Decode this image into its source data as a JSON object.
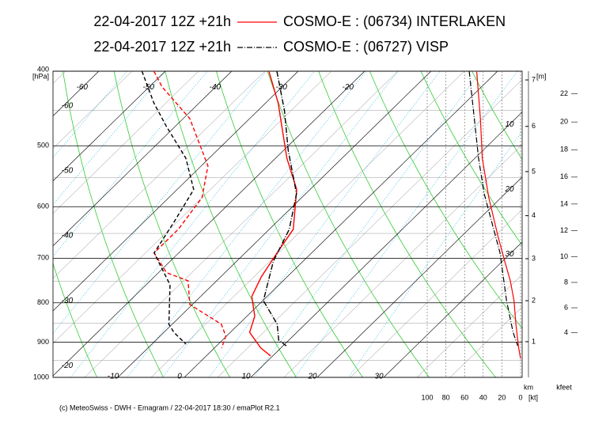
{
  "chart_data": {
    "type": "emagram",
    "series": [
      {
        "run": "22-04-2017 12Z +21h",
        "name": "COSMO-E : (06734) INTERLAKEN",
        "color": "#ff0000",
        "temperature": {
          "pressure": [
            400,
            440,
            519,
            570,
            642,
            689,
            740,
            785,
            833,
            874,
            916,
            938
          ],
          "values": [
            -34.4,
            -28.1,
            -18.3,
            -12,
            -6.4,
            -5.2,
            -3.9,
            -2.3,
            1.2,
            2.9,
            7.0,
            9.7
          ]
        },
        "dewpoint": {
          "pressure": [
            400,
            419,
            461,
            531,
            584,
            642,
            689,
            731,
            749,
            804,
            853,
            884,
            916
          ],
          "values": [
            -51.7,
            -48.1,
            -39,
            -29,
            -25,
            -23.7,
            -23.7,
            -18.8,
            -14.3,
            -10.4,
            -2.6,
            -0.1,
            1.1
          ]
        },
        "wind_speed": {
          "pressure": [
            400,
            461,
            519,
            584,
            657,
            706,
            749,
            795,
            853,
            916,
            945
          ],
          "values": [
            47,
            43,
            41,
            34,
            24,
            17,
            11,
            7,
            5,
            2,
            0
          ]
        }
      },
      {
        "run": "22-04-2017 12Z +21h",
        "name": "COSMO-E : (06727) VISP",
        "color": "#000000",
        "temperature": {
          "pressure": [
            400,
            450,
            507,
            577,
            642,
            706,
            795,
            853,
            895,
            910
          ],
          "values": [
            -33.2,
            -26,
            -19.3,
            -11.4,
            -7,
            -4.5,
            0.1,
            5.8,
            8.5,
            10.5
          ]
        },
        "dewpoint": {
          "pressure": [
            400,
            440,
            472,
            519,
            570,
            627,
            689,
            758,
            853,
            874,
            905
          ],
          "values": [
            -53.5,
            -46.8,
            -41.3,
            -33.5,
            -27.5,
            -25.5,
            -23.7,
            -16.4,
            -10.5,
            -8.5,
            -4.9
          ]
        },
        "wind_speed": {
          "pressure": [
            400,
            519,
            577,
            689,
            795,
            874,
            910
          ],
          "values": [
            55,
            45,
            39,
            22,
            15,
            8,
            3
          ]
        }
      }
    ],
    "ylim": [
      1000,
      400
    ],
    "yticks": [
      400,
      500,
      600,
      700,
      800,
      900,
      1000
    ],
    "y_unit": "[hPa]",
    "log_scale": true,
    "xticks": [
      -60,
      -50,
      -40,
      -30,
      -20,
      -10,
      0,
      10,
      20,
      30
    ],
    "wind_xlim": [
      100,
      0
    ],
    "wind_xticks": [
      100,
      80,
      60,
      40,
      20,
      0
    ],
    "wind_unit": "[kt]",
    "height_ticks": [
      1,
      2,
      3,
      4,
      5,
      6,
      7
    ],
    "height_unit_top": "[m]",
    "height_unit": "km",
    "feet_ticks": [
      4,
      6,
      8,
      10,
      12,
      14,
      16,
      18,
      20,
      22
    ],
    "feet_unit": "kfeet",
    "footer": "(c) MeteoSwiss - DWH - Emagram / 22-04-2017 18:30 / emaPlot R2.1"
  }
}
